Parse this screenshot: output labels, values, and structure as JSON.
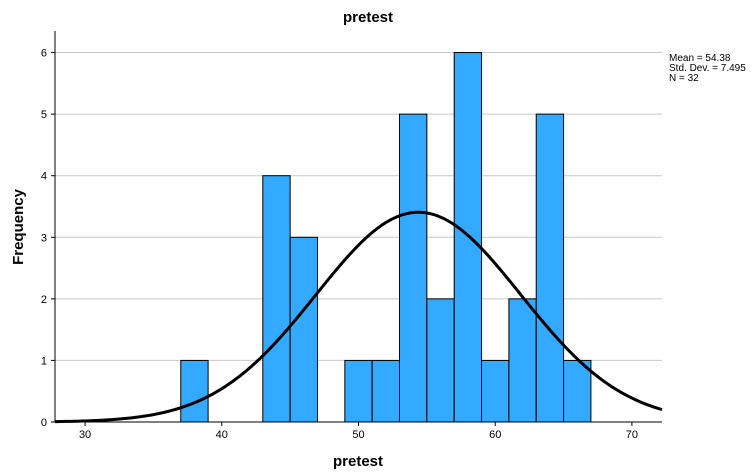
{
  "chart_data": {
    "type": "bar",
    "title": "pretest",
    "xlabel": "pretest",
    "ylabel": "Frequency",
    "xlim": [
      27.8,
      72.2
    ],
    "ylim": [
      0,
      6.35
    ],
    "bin_width": 2,
    "bins": [
      {
        "x0": 37,
        "x1": 39,
        "count": 1
      },
      {
        "x0": 43,
        "x1": 45,
        "count": 4
      },
      {
        "x0": 45,
        "x1": 47,
        "count": 3
      },
      {
        "x0": 49,
        "x1": 51,
        "count": 1
      },
      {
        "x0": 51,
        "x1": 53,
        "count": 1
      },
      {
        "x0": 53,
        "x1": 55,
        "count": 5
      },
      {
        "x0": 55,
        "x1": 57,
        "count": 2
      },
      {
        "x0": 57,
        "x1": 59,
        "count": 6
      },
      {
        "x0": 59,
        "x1": 61,
        "count": 1
      },
      {
        "x0": 61,
        "x1": 63,
        "count": 2
      },
      {
        "x0": 63,
        "x1": 65,
        "count": 5
      },
      {
        "x0": 65,
        "x1": 67,
        "count": 1
      }
    ],
    "x_ticks": [
      30,
      40,
      50,
      60,
      70
    ],
    "y_ticks": [
      0,
      1,
      2,
      3,
      4,
      5,
      6
    ],
    "grid": true,
    "normal_curve": {
      "mean": 54.38,
      "sd": 7.495,
      "n": 32
    },
    "stats": [
      "Mean = 54.38",
      "Std. Dev. = 7.495",
      "N = 32"
    ],
    "colors": {
      "bar": "#33aaff",
      "bar_edge": "#000000",
      "curve": "#000000",
      "grid": "#c8c8c8",
      "axis": "#000000"
    }
  }
}
